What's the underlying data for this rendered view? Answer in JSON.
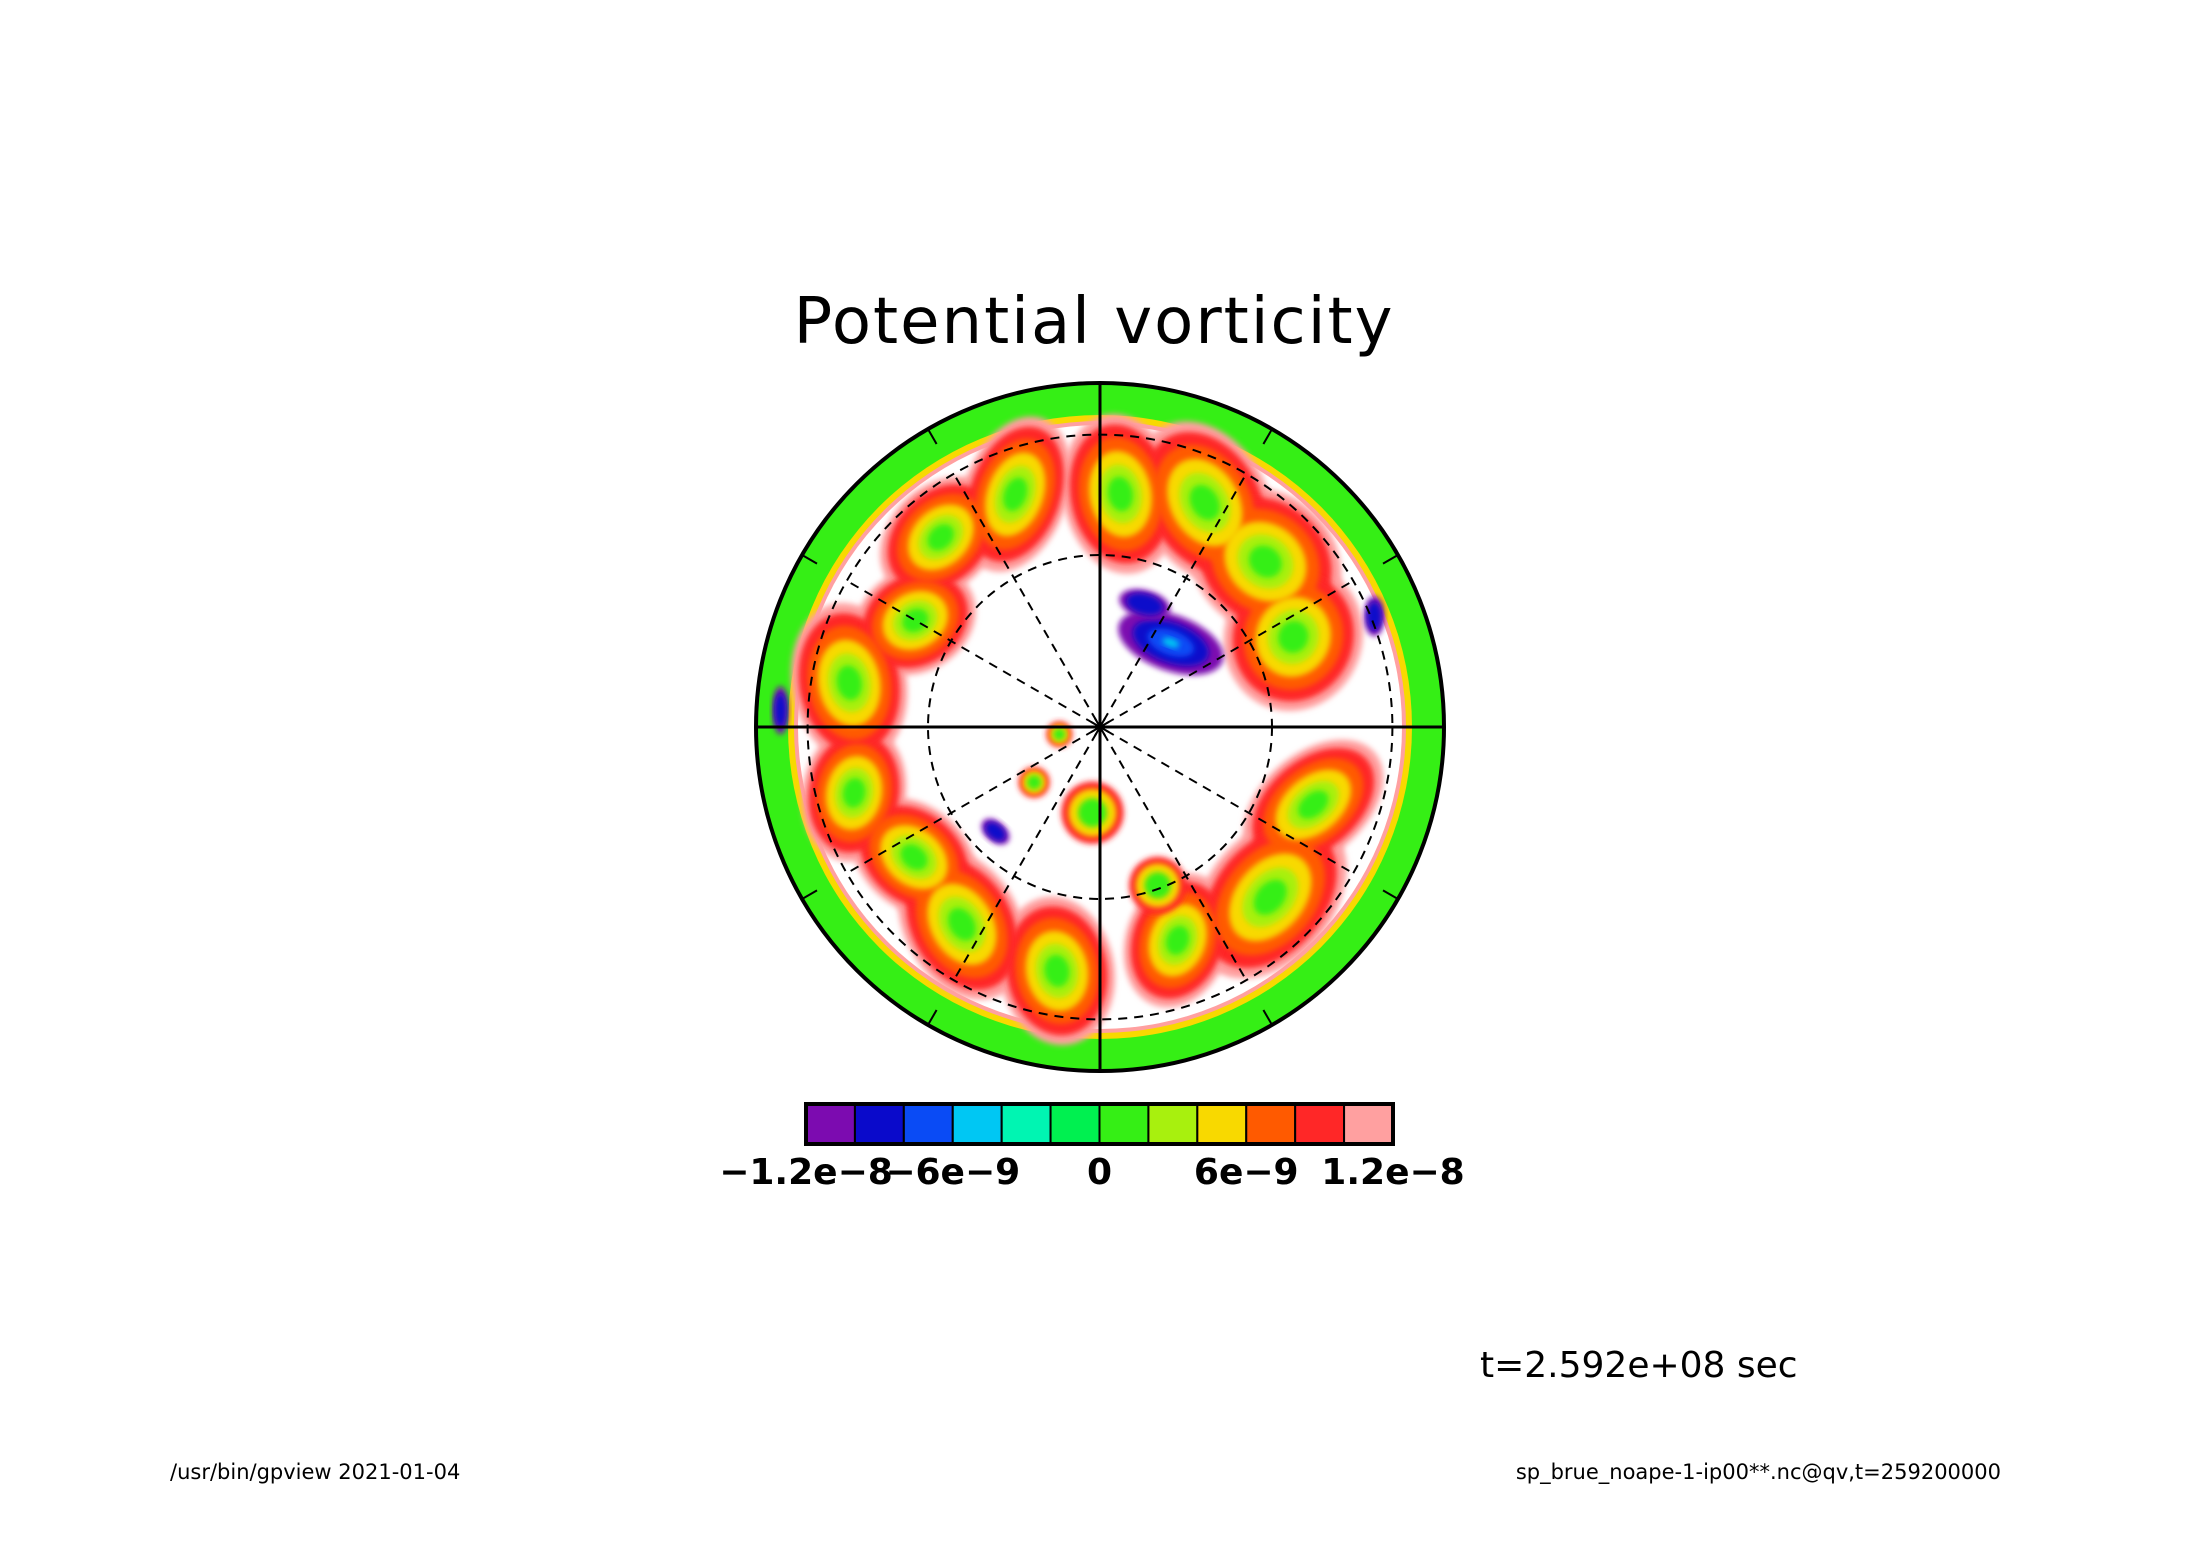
{
  "chart_data": {
    "type": "heatmap",
    "projection": "polar stereographic",
    "title": "Potential vorticity",
    "variable": "qv",
    "colorbar": {
      "tick_labels": [
        "-1.2e-8",
        "-6e-9",
        "0",
        "6e-9",
        "1.2e-8"
      ],
      "tick_values": [
        -1.2e-08,
        -6e-09,
        0,
        6e-09,
        1.2e-08
      ],
      "levels": [
        -1.2e-08,
        -1e-08,
        -8e-09,
        -6e-09,
        -4e-09,
        -2e-09,
        0,
        2e-09,
        4e-09,
        6e-09,
        8e-09,
        1e-08,
        1.2e-08
      ],
      "colors": [
        "#7c0bb0",
        "#0a0acb",
        "#0a4bf5",
        "#00c7f3",
        "#00f5b2",
        "#00f050",
        "#35ef15",
        "#a8f00e",
        "#f8d900",
        "#ff5a00",
        "#ff2727",
        "#ffa0a0"
      ]
    },
    "outer_ring_color": "#35ef15",
    "grid": true
  },
  "annotations": {
    "time": "t=2.592e+08 sec",
    "footer_left": "/usr/bin/gpview   2021-01-04",
    "footer_right": "sp_brue_noape-1-ip00**.nc@qv,t=259200000"
  }
}
